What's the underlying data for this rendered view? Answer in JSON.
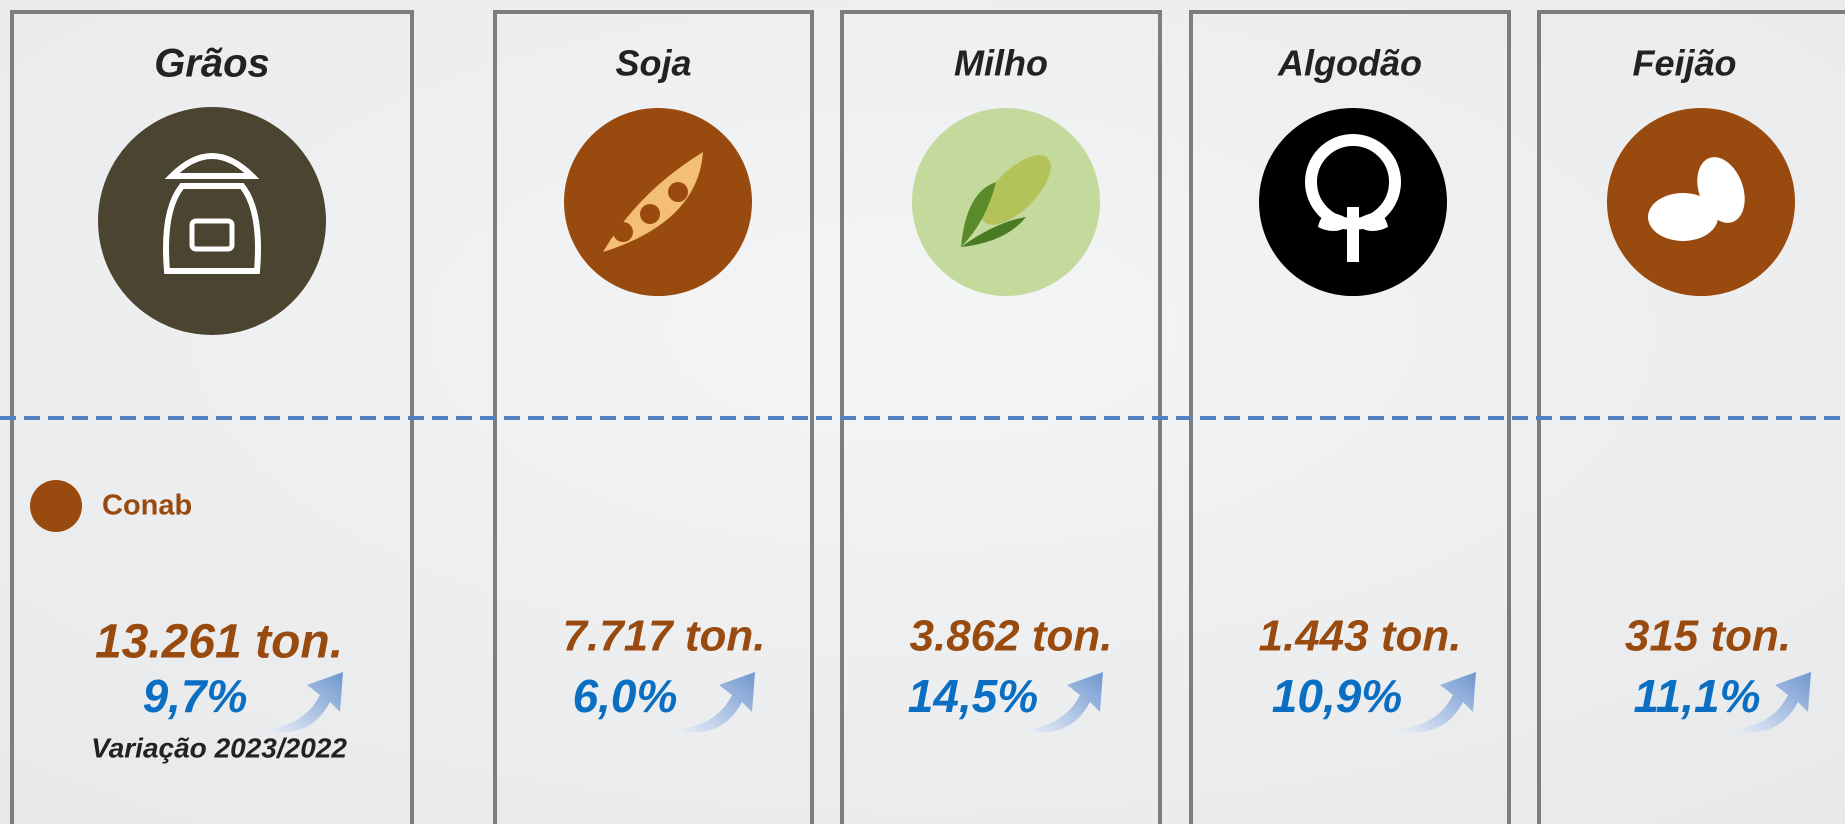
{
  "panels": [
    {
      "name": "Grãos",
      "value": "13.261 ton.",
      "change": "9,7%"
    },
    {
      "name": "Soja",
      "value": "7.717 ton.",
      "change": "6,0%"
    },
    {
      "name": "Milho",
      "value": "3.862 ton.",
      "change": "14,5%"
    },
    {
      "name": "Algodão",
      "value": "1.443 ton.",
      "change": "10,9%"
    },
    {
      "name": "Feijão",
      "value": "315 ton.",
      "change": "11,1%"
    }
  ],
  "legend": "Conab",
  "note": "Variação 2023/2022"
}
